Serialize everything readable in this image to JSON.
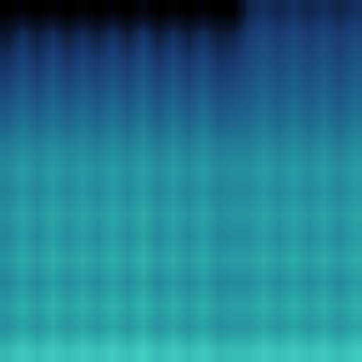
{
  "chart_data": {
    "type": "heatmap",
    "tick_labels": false,
    "color_range": [
      0,
      8
    ],
    "cells": [
      [
        0,
        0.3,
        0,
        0.3,
        0,
        0.3,
        0,
        0.3,
        0,
        0.5,
        0,
        0.3,
        0,
        0.3,
        0,
        0,
        2.2,
        2.6,
        2.2,
        2.6,
        2.2,
        2.6,
        2.2,
        2.6
      ],
      [
        1.5,
        2.5,
        1.8,
        2.5,
        1.8,
        2.4,
        1.8,
        2.6,
        1.8,
        2.8,
        1.8,
        2.5,
        1.8,
        2.5,
        1.8,
        2,
        3,
        3.4,
        3,
        3.4,
        3,
        3.4,
        3,
        3.4
      ],
      [
        2.5,
        3.2,
        2.6,
        3.3,
        2.7,
        3.2,
        2.8,
        3.3,
        2.8,
        3.5,
        2.7,
        3.3,
        2.7,
        3.3,
        2.6,
        2.8,
        3.4,
        3.8,
        3.4,
        3.8,
        3.4,
        3.8,
        3.3,
        3.8
      ],
      [
        3.1,
        3.8,
        3.2,
        3.9,
        3.3,
        3.8,
        3.4,
        3.9,
        3.4,
        4.1,
        3.3,
        3.9,
        3.3,
        3.9,
        3.2,
        3.4,
        3.8,
        4.2,
        3.8,
        4.2,
        3.8,
        4.2,
        3.7,
        4.2
      ],
      [
        3.8,
        4.4,
        3.9,
        4.5,
        4,
        4.4,
        4,
        4.5,
        4,
        4.6,
        3.9,
        4.5,
        3.9,
        4.5,
        3.8,
        4,
        4.2,
        4.6,
        4.2,
        4.6,
        4.2,
        4.6,
        4.1,
        4.6
      ],
      [
        4.4,
        5,
        4.5,
        5,
        4.6,
        5,
        4.6,
        5.1,
        4.6,
        5.2,
        4.5,
        5.1,
        4.5,
        5.1,
        4.4,
        4.6,
        4.7,
        5.1,
        4.7,
        5.1,
        4.7,
        5.1,
        4.6,
        5.1
      ],
      [
        5.2,
        5.6,
        5.3,
        5.7,
        5.4,
        5.6,
        5.3,
        5.7,
        5.3,
        5.8,
        5.2,
        5.7,
        5.2,
        5.7,
        5.2,
        5.3,
        5.3,
        5.7,
        5.3,
        5.7,
        5.3,
        5.7,
        5.2,
        5.7
      ],
      [
        5.6,
        6.2,
        5.7,
        6.2,
        5.8,
        6.1,
        5.8,
        6.2,
        5.8,
        6.3,
        5.7,
        6.2,
        5.7,
        6.2,
        5.6,
        5.8,
        5.8,
        6.2,
        5.8,
        6.2,
        5.8,
        6.2,
        5.7,
        6.2
      ],
      [
        5.4,
        6,
        5.5,
        6.1,
        5.6,
        6,
        5.6,
        6.1,
        5.6,
        6.2,
        5.5,
        6,
        5.5,
        6,
        5.4,
        5.6,
        5.6,
        6,
        5.6,
        6,
        5.6,
        6,
        5.5,
        6
      ],
      [
        5.8,
        6.4,
        5.9,
        6.5,
        6,
        6.4,
        6,
        6.5,
        6,
        6.6,
        5.9,
        6.4,
        5.9,
        6.4,
        5.8,
        6,
        6,
        6.4,
        6,
        6.4,
        6,
        6.4,
        5.9,
        6.4
      ],
      [
        5.5,
        6.2,
        5.6,
        6.3,
        5.7,
        6.2,
        5.7,
        6.3,
        5.7,
        6.4,
        5.6,
        6.2,
        5.6,
        6.2,
        5.5,
        5.7,
        5.7,
        6.2,
        5.7,
        6.2,
        5.7,
        6.2,
        5.6,
        6.2
      ],
      [
        6,
        6.6,
        6.1,
        6.7,
        6.2,
        6.6,
        6.2,
        6.7,
        6.2,
        6.8,
        6.1,
        6.6,
        6.1,
        6.6,
        6,
        6.2,
        6.2,
        6.6,
        6.2,
        6.6,
        6.2,
        6.6,
        6.1,
        6.6
      ],
      [
        5.5,
        6.2,
        5.6,
        6.3,
        5.7,
        6.2,
        5.7,
        6.3,
        5.7,
        6.4,
        5.6,
        6.2,
        5.6,
        6.2,
        5.5,
        5.7,
        5.7,
        6.2,
        5.7,
        6.2,
        5.7,
        6.2,
        5.6,
        6.2
      ],
      [
        6.1,
        6.7,
        6.2,
        6.8,
        6.3,
        6.7,
        6.3,
        6.8,
        6.3,
        6.9,
        6.2,
        6.7,
        6.2,
        6.7,
        6.1,
        6.3,
        6.3,
        6.7,
        6.3,
        6.7,
        6.3,
        6.7,
        6.2,
        6.7
      ],
      [
        5.8,
        6.4,
        5.9,
        6.5,
        6,
        6.4,
        6,
        6.5,
        6,
        6.6,
        5.9,
        6.4,
        5.9,
        6.4,
        5.8,
        6,
        6,
        6.4,
        6,
        6.4,
        6,
        6.4,
        5.9,
        6.4
      ],
      [
        7,
        7.6,
        7.1,
        7.6,
        7.2,
        7.6,
        7.2,
        7.7,
        7.2,
        7.8,
        7.1,
        7.6,
        7.1,
        7.6,
        7,
        7.2,
        7.2,
        7.6,
        7.2,
        7.6,
        7.2,
        7.6,
        7.1,
        7.6
      ]
    ]
  }
}
